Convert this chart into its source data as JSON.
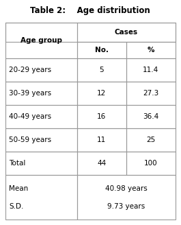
{
  "title": "Table 2:    Age distribution",
  "rows": [
    [
      "20-29 years",
      "5",
      "11.4"
    ],
    [
      "30-39 years",
      "12",
      "27.3"
    ],
    [
      "40-49 years",
      "16",
      "36.4"
    ],
    [
      "50-59 years",
      "11",
      "25"
    ],
    [
      "Total",
      "44",
      "100"
    ]
  ],
  "mean_label": "Mean",
  "mean_value": "40.98 years",
  "sd_label": "S.D.",
  "sd_value": "9.73 years",
  "bg_color": "#ffffff",
  "border_color": "#999999",
  "text_color": "#000000",
  "title_fontsize": 8.5,
  "body_fontsize": 7.5
}
